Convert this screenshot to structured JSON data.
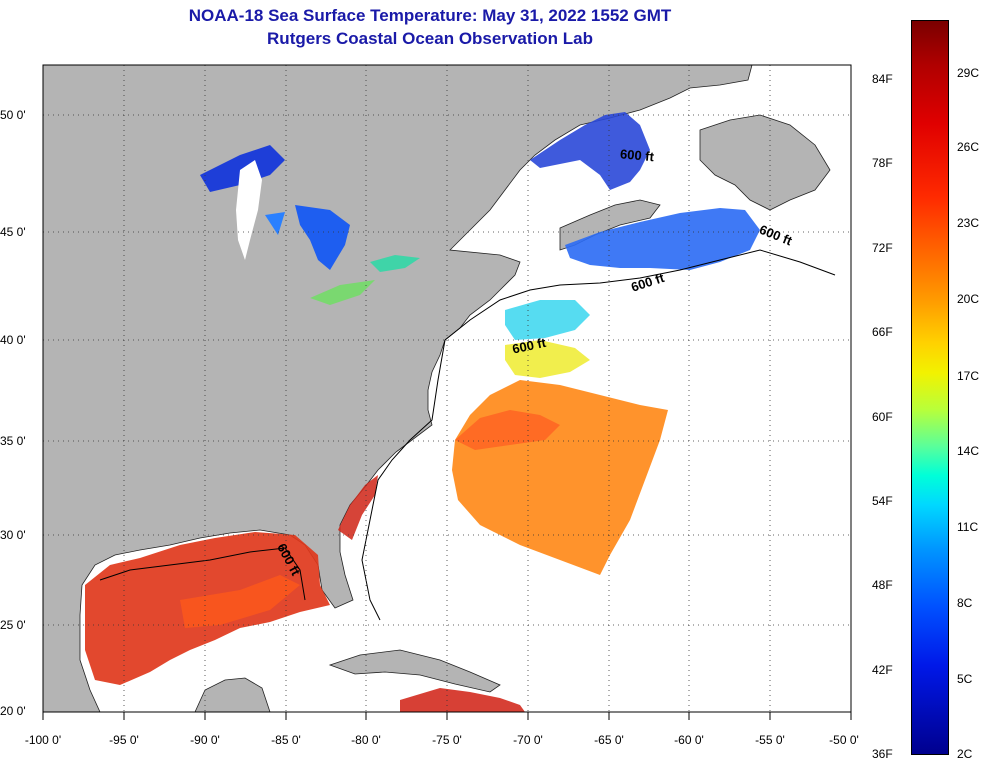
{
  "title": {
    "line1": "NOAA-18 Sea Surface Temperature:  May 31, 2022 1552 GMT",
    "line2": "Rutgers Coastal Ocean Observation Lab"
  },
  "map": {
    "land_color": "#b4b4b4",
    "ocean_color": "#ffffff",
    "lat_labels": [
      "50 0'",
      "45 0'",
      "40 0'",
      "35 0'",
      "30 0'",
      "25 0'",
      "20 0'"
    ],
    "lon_labels": [
      "-100 0'",
      "-95 0'",
      "-90 0'",
      "-85 0'",
      "-80 0'",
      "-75 0'",
      "-70 0'",
      "-65 0'",
      "-60 0'",
      "-55 0'",
      "-50 0'"
    ],
    "contour_label": "600 ft"
  },
  "colorbar": {
    "fahrenheit_labels": [
      "84F",
      "78F",
      "72F",
      "66F",
      "60F",
      "54F",
      "48F",
      "42F",
      "36F"
    ],
    "celsius_labels": [
      "29C",
      "26C",
      "23C",
      "20C",
      "17C",
      "14C",
      "11C",
      "8C",
      "5C",
      "2C"
    ],
    "colors": [
      "#7a0000",
      "#e00000",
      "#ff6a00",
      "#ffd200",
      "#b8ff3a",
      "#00ffd8",
      "#0096ff",
      "#0018e8",
      "#00008e"
    ]
  }
}
